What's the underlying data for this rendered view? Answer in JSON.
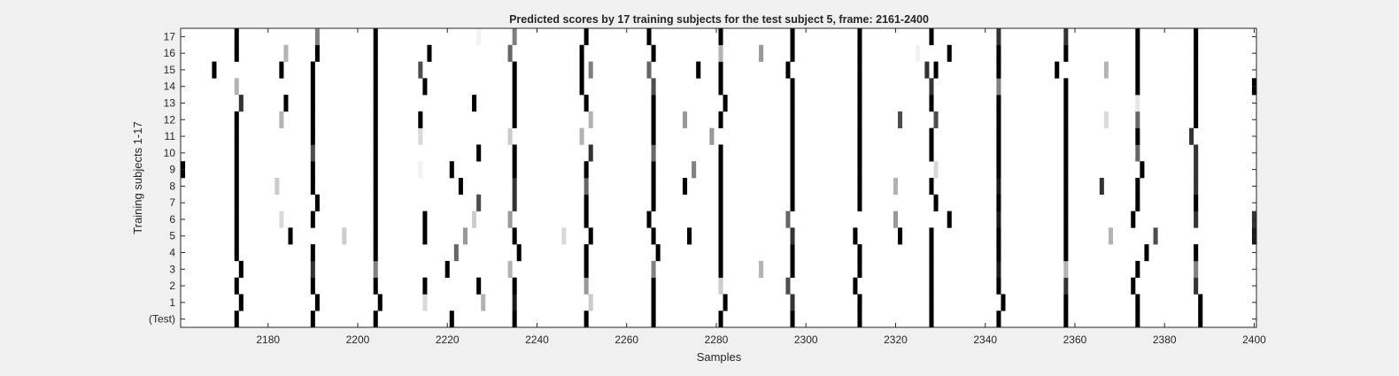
{
  "chart_data": {
    "type": "heatmap",
    "title": "Predicted scores by 17 training subjects for the test subject 5, frame: 2161-2400",
    "xlabel": "Samples",
    "ylabel": "Training subjects 1-17",
    "xlim": [
      2161,
      2400
    ],
    "x_ticks": [
      2180,
      2200,
      2220,
      2240,
      2260,
      2280,
      2300,
      2320,
      2340,
      2360,
      2380,
      2400
    ],
    "row_labels": [
      "(Test)",
      "1",
      "2",
      "3",
      "4",
      "5",
      "6",
      "7",
      "8",
      "9",
      "10",
      "11",
      "12",
      "13",
      "14",
      "15",
      "16",
      "17"
    ],
    "colormap": "gray (0 = white, 1 = black)",
    "background_color": "#f0f0f0",
    "grid": false,
    "rows": [
      {
        "label": "(Test)",
        "marks": [
          [
            2173,
            1
          ],
          [
            2190,
            1
          ],
          [
            2204,
            1
          ],
          [
            2221,
            1
          ],
          [
            2235,
            1
          ],
          [
            2251,
            1
          ],
          [
            2266,
            1
          ],
          [
            2281,
            1
          ],
          [
            2297,
            1
          ],
          [
            2312,
            1
          ],
          [
            2328,
            1
          ],
          [
            2343,
            1
          ],
          [
            2358,
            1
          ],
          [
            2374,
            1
          ],
          [
            2388,
            1
          ]
        ]
      },
      {
        "label": "1",
        "marks": [
          [
            2174,
            1
          ],
          [
            2191,
            1
          ],
          [
            2205,
            1
          ],
          [
            2215,
            0.15
          ],
          [
            2228,
            0.3
          ],
          [
            2235,
            0.9
          ],
          [
            2252,
            0.2
          ],
          [
            2266,
            1
          ],
          [
            2282,
            1
          ],
          [
            2297,
            0.8
          ],
          [
            2312,
            1
          ],
          [
            2328,
            1
          ],
          [
            2344,
            1
          ],
          [
            2358,
            1
          ],
          [
            2374,
            1
          ],
          [
            2388,
            1
          ]
        ]
      },
      {
        "label": "2",
        "marks": [
          [
            2173,
            1
          ],
          [
            2190,
            1
          ],
          [
            2204,
            1
          ],
          [
            2215,
            1
          ],
          [
            2227,
            1
          ],
          [
            2235,
            1
          ],
          [
            2251,
            0.4
          ],
          [
            2266,
            1
          ],
          [
            2281,
            0.2
          ],
          [
            2296,
            0.7
          ],
          [
            2311,
            1
          ],
          [
            2328,
            1
          ],
          [
            2343,
            1
          ],
          [
            2358,
            0.8
          ],
          [
            2373,
            1
          ],
          [
            2387,
            0.8
          ]
        ]
      },
      {
        "label": "3",
        "marks": [
          [
            2174,
            1
          ],
          [
            2190,
            0.8
          ],
          [
            2204,
            0.5
          ],
          [
            2220,
            1
          ],
          [
            2234,
            0.3
          ],
          [
            2251,
            1
          ],
          [
            2266,
            0.5
          ],
          [
            2281,
            1
          ],
          [
            2290,
            0.3
          ],
          [
            2297,
            1
          ],
          [
            2312,
            1
          ],
          [
            2328,
            1
          ],
          [
            2343,
            0.9
          ],
          [
            2358,
            0.3
          ],
          [
            2374,
            1
          ],
          [
            2387,
            0.5
          ]
        ]
      },
      {
        "label": "4",
        "marks": [
          [
            2173,
            1
          ],
          [
            2190,
            1
          ],
          [
            2204,
            1
          ],
          [
            2222,
            0.6
          ],
          [
            2236,
            1
          ],
          [
            2251,
            1
          ],
          [
            2267,
            1
          ],
          [
            2281,
            1
          ],
          [
            2297,
            1
          ],
          [
            2312,
            1
          ],
          [
            2328,
            1
          ],
          [
            2343,
            1
          ],
          [
            2358,
            1
          ],
          [
            2376,
            1
          ],
          [
            2387,
            1
          ]
        ]
      },
      {
        "label": "5",
        "marks": [
          [
            2173,
            1
          ],
          [
            2185,
            1
          ],
          [
            2197,
            0.2
          ],
          [
            2204,
            1
          ],
          [
            2215,
            1
          ],
          [
            2224,
            0.4
          ],
          [
            2235,
            1
          ],
          [
            2246,
            0.15
          ],
          [
            2252,
            1
          ],
          [
            2266,
            1
          ],
          [
            2274,
            1
          ],
          [
            2281,
            1
          ],
          [
            2297,
            0.8
          ],
          [
            2311,
            1
          ],
          [
            2321,
            1
          ],
          [
            2328,
            1
          ],
          [
            2343,
            1
          ],
          [
            2358,
            1
          ],
          [
            2368,
            0.3
          ],
          [
            2378,
            0.7
          ],
          [
            2400,
            0.9
          ]
        ]
      },
      {
        "label": "6",
        "marks": [
          [
            2173,
            1
          ],
          [
            2183,
            0.15
          ],
          [
            2190,
            1
          ],
          [
            2204,
            1
          ],
          [
            2215,
            1
          ],
          [
            2226,
            0.2
          ],
          [
            2234,
            0.4
          ],
          [
            2251,
            1
          ],
          [
            2265,
            1
          ],
          [
            2281,
            1
          ],
          [
            2296,
            0.6
          ],
          [
            2320,
            0.4
          ],
          [
            2332,
            1
          ],
          [
            2343,
            0.9
          ],
          [
            2358,
            1
          ],
          [
            2373,
            1
          ],
          [
            2387,
            0.8
          ],
          [
            2400,
            0.8
          ]
        ]
      },
      {
        "label": "7",
        "marks": [
          [
            2173,
            1
          ],
          [
            2191,
            1
          ],
          [
            2204,
            1
          ],
          [
            2227,
            0.7
          ],
          [
            2235,
            0.8
          ],
          [
            2251,
            1
          ],
          [
            2266,
            1
          ],
          [
            2281,
            1
          ],
          [
            2297,
            1
          ],
          [
            2312,
            1
          ],
          [
            2329,
            1
          ],
          [
            2343,
            1
          ],
          [
            2358,
            1
          ],
          [
            2374,
            1
          ],
          [
            2387,
            1
          ]
        ]
      },
      {
        "label": "8",
        "marks": [
          [
            2173,
            1
          ],
          [
            2182,
            0.2
          ],
          [
            2190,
            1
          ],
          [
            2204,
            1
          ],
          [
            2223,
            1
          ],
          [
            2235,
            0.8
          ],
          [
            2251,
            0.6
          ],
          [
            2266,
            1
          ],
          [
            2273,
            1
          ],
          [
            2281,
            1
          ],
          [
            2297,
            1
          ],
          [
            2312,
            1
          ],
          [
            2320,
            0.3
          ],
          [
            2328,
            1
          ],
          [
            2343,
            0.9
          ],
          [
            2358,
            1
          ],
          [
            2366,
            0.8
          ],
          [
            2374,
            1
          ],
          [
            2387,
            0.8
          ]
        ]
      },
      {
        "label": "9",
        "marks": [
          [
            2161,
            1
          ],
          [
            2173,
            1
          ],
          [
            2190,
            1
          ],
          [
            2204,
            1
          ],
          [
            2214,
            0.05
          ],
          [
            2221,
            1
          ],
          [
            2235,
            1
          ],
          [
            2251,
            1
          ],
          [
            2266,
            1
          ],
          [
            2275,
            0.5
          ],
          [
            2281,
            1
          ],
          [
            2297,
            1
          ],
          [
            2312,
            1
          ],
          [
            2329,
            0.15
          ],
          [
            2343,
            1
          ],
          [
            2358,
            1
          ],
          [
            2375,
            1
          ],
          [
            2387,
            0.8
          ]
        ]
      },
      {
        "label": "10",
        "marks": [
          [
            2173,
            1
          ],
          [
            2190,
            0.7
          ],
          [
            2204,
            1
          ],
          [
            2227,
            1
          ],
          [
            2235,
            1
          ],
          [
            2252,
            0.8
          ],
          [
            2266,
            0.6
          ],
          [
            2281,
            1
          ],
          [
            2297,
            1
          ],
          [
            2312,
            1
          ],
          [
            2328,
            1
          ],
          [
            2343,
            1
          ],
          [
            2358,
            1
          ],
          [
            2374,
            0.6
          ],
          [
            2387,
            0.8
          ]
        ]
      },
      {
        "label": "11",
        "marks": [
          [
            2173,
            1
          ],
          [
            2190,
            1
          ],
          [
            2204,
            1
          ],
          [
            2214,
            0.15
          ],
          [
            2234,
            0.2
          ],
          [
            2250,
            0.3
          ],
          [
            2266,
            1
          ],
          [
            2279,
            0.4
          ],
          [
            2297,
            1
          ],
          [
            2312,
            1
          ],
          [
            2328,
            1
          ],
          [
            2343,
            1
          ],
          [
            2358,
            1
          ],
          [
            2374,
            1
          ],
          [
            2386,
            0.8
          ]
        ]
      },
      {
        "label": "12",
        "marks": [
          [
            2173,
            1
          ],
          [
            2183,
            0.3
          ],
          [
            2190,
            1
          ],
          [
            2204,
            1
          ],
          [
            2214,
            1
          ],
          [
            2235,
            1
          ],
          [
            2252,
            0.3
          ],
          [
            2266,
            1
          ],
          [
            2273,
            0.4
          ],
          [
            2281,
            1
          ],
          [
            2297,
            1
          ],
          [
            2312,
            1
          ],
          [
            2321,
            0.7
          ],
          [
            2329,
            0.7
          ],
          [
            2343,
            1
          ],
          [
            2358,
            1
          ],
          [
            2367,
            0.15
          ],
          [
            2374,
            0.6
          ],
          [
            2387,
            1
          ]
        ]
      },
      {
        "label": "13",
        "marks": [
          [
            2174,
            0.8
          ],
          [
            2184,
            1
          ],
          [
            2190,
            1
          ],
          [
            2204,
            1
          ],
          [
            2226,
            1
          ],
          [
            2235,
            1
          ],
          [
            2251,
            1
          ],
          [
            2266,
            1
          ],
          [
            2282,
            1
          ],
          [
            2297,
            1
          ],
          [
            2312,
            1
          ],
          [
            2328,
            1
          ],
          [
            2343,
            1
          ],
          [
            2358,
            1
          ],
          [
            2374,
            0.1
          ],
          [
            2387,
            1
          ]
        ]
      },
      {
        "label": "14",
        "marks": [
          [
            2173,
            0.3
          ],
          [
            2190,
            1
          ],
          [
            2204,
            1
          ],
          [
            2215,
            1
          ],
          [
            2235,
            1
          ],
          [
            2250,
            1
          ],
          [
            2266,
            0.7
          ],
          [
            2281,
            1
          ],
          [
            2297,
            1
          ],
          [
            2312,
            1
          ],
          [
            2328,
            0.8
          ],
          [
            2343,
            0.5
          ],
          [
            2358,
            1
          ],
          [
            2374,
            1
          ],
          [
            2387,
            1
          ],
          [
            2400,
            1
          ]
        ]
      },
      {
        "label": "15",
        "marks": [
          [
            2168,
            1
          ],
          [
            2183,
            1
          ],
          [
            2190,
            1
          ],
          [
            2204,
            1
          ],
          [
            2214,
            0.7
          ],
          [
            2235,
            1
          ],
          [
            2250,
            1
          ],
          [
            2252,
            0.5
          ],
          [
            2265,
            0.6
          ],
          [
            2276,
            1
          ],
          [
            2281,
            1
          ],
          [
            2296,
            1
          ],
          [
            2312,
            1
          ],
          [
            2327,
            0.8
          ],
          [
            2329,
            1
          ],
          [
            2343,
            1
          ],
          [
            2356,
            1
          ],
          [
            2367,
            0.3
          ],
          [
            2374,
            1
          ],
          [
            2387,
            1
          ]
        ]
      },
      {
        "label": "16",
        "marks": [
          [
            2173,
            1
          ],
          [
            2184,
            0.3
          ],
          [
            2191,
            1
          ],
          [
            2204,
            1
          ],
          [
            2216,
            1
          ],
          [
            2234,
            0.6
          ],
          [
            2250,
            1
          ],
          [
            2266,
            1
          ],
          [
            2281,
            0.3
          ],
          [
            2290,
            0.4
          ],
          [
            2297,
            1
          ],
          [
            2312,
            1
          ],
          [
            2325,
            0.05
          ],
          [
            2332,
            1
          ],
          [
            2343,
            1
          ],
          [
            2358,
            1
          ],
          [
            2374,
            1
          ],
          [
            2387,
            1
          ]
        ]
      },
      {
        "label": "17",
        "marks": [
          [
            2173,
            1
          ],
          [
            2191,
            0.5
          ],
          [
            2204,
            1
          ],
          [
            2227,
            0.05
          ],
          [
            2235,
            0.5
          ],
          [
            2251,
            1
          ],
          [
            2265,
            1
          ],
          [
            2281,
            1
          ],
          [
            2297,
            1
          ],
          [
            2312,
            1
          ],
          [
            2328,
            1
          ],
          [
            2343,
            0.8
          ],
          [
            2358,
            0.8
          ],
          [
            2374,
            1
          ],
          [
            2387,
            1
          ]
        ]
      }
    ]
  }
}
